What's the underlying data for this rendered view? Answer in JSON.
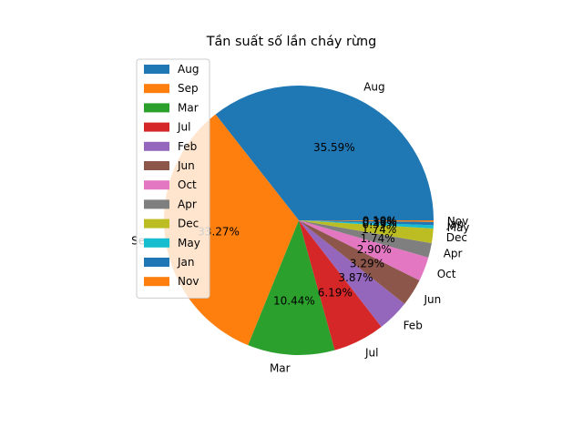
{
  "chart_data": {
    "type": "pie",
    "title": "Tần suất số lần cháy rừng",
    "start_angle_deg": 0,
    "direction": "counterclockwise",
    "legend_position": "upper-left",
    "slices": [
      {
        "label": "Aug",
        "percent": 35.59,
        "percent_label": "35.59%",
        "color": "#1f77b4"
      },
      {
        "label": "Sep",
        "percent": 33.27,
        "percent_label": "33.27%",
        "color": "#ff7f0e"
      },
      {
        "label": "Mar",
        "percent": 10.44,
        "percent_label": "10.44%",
        "color": "#2ca02c"
      },
      {
        "label": "Jul",
        "percent": 6.19,
        "percent_label": "6.19%",
        "color": "#d62728"
      },
      {
        "label": "Feb",
        "percent": 3.87,
        "percent_label": "3.87%",
        "color": "#9467bd"
      },
      {
        "label": "Jun",
        "percent": 3.29,
        "percent_label": "3.29%",
        "color": "#8c564b"
      },
      {
        "label": "Oct",
        "percent": 2.9,
        "percent_label": "2.90%",
        "color": "#e377c2"
      },
      {
        "label": "Apr",
        "percent": 1.74,
        "percent_label": "1.74%",
        "color": "#7f7f7f"
      },
      {
        "label": "Dec",
        "percent": 1.74,
        "percent_label": "1.74%",
        "color": "#bcbd22"
      },
      {
        "label": "May",
        "percent": 0.39,
        "percent_label": "0.39%",
        "color": "#17becf"
      },
      {
        "label": "Jan",
        "percent": 0.39,
        "percent_label": "0.39%",
        "color": "#1f77b4"
      },
      {
        "label": "Nov",
        "percent": 0.19,
        "percent_label": "0.19%",
        "color": "#ff7f0e"
      }
    ]
  }
}
